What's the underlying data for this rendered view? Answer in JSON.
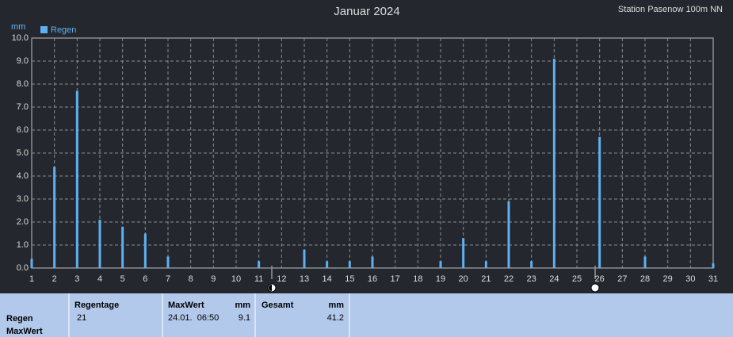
{
  "chart_data": {
    "type": "bar",
    "title": "Januar 2024",
    "annotation": "Station Pasenow  100m NN",
    "y_label": "mm",
    "x": [
      1,
      2,
      3,
      4,
      5,
      6,
      7,
      11,
      13,
      14,
      15,
      16,
      19,
      20,
      21,
      22,
      23,
      24,
      26,
      28,
      31
    ],
    "series": [
      {
        "name": "Regen",
        "color": "#5fb0f0",
        "values": [
          0.4,
          4.4,
          7.7,
          2.1,
          1.8,
          1.5,
          0.5,
          0.3,
          0.8,
          0.3,
          0.3,
          0.5,
          0.3,
          1.3,
          0.3,
          2.9,
          0.3,
          9.1,
          5.7,
          0.5,
          0.2
        ]
      }
    ],
    "xlim": [
      1,
      31
    ],
    "xticks": [
      1,
      2,
      3,
      4,
      5,
      6,
      7,
      8,
      9,
      10,
      11,
      12,
      13,
      14,
      15,
      16,
      17,
      18,
      19,
      20,
      21,
      22,
      23,
      24,
      25,
      26,
      27,
      28,
      29,
      30,
      31
    ],
    "ylim": [
      0,
      10
    ],
    "yticks": [
      {
        "value": 0,
        "label": "0.0"
      },
      {
        "value": 1,
        "label": "1.0"
      },
      {
        "value": 2,
        "label": "2.0"
      },
      {
        "value": 3,
        "label": "3.0"
      },
      {
        "value": 4,
        "label": "4.0"
      },
      {
        "value": 5,
        "label": "5.0"
      },
      {
        "value": 6,
        "label": "6.0"
      },
      {
        "value": 7,
        "label": "7.0"
      },
      {
        "value": 8,
        "label": "8.0"
      },
      {
        "value": 9,
        "label": "9.0"
      },
      {
        "value": 10,
        "label": "10.0"
      }
    ],
    "grid": true,
    "legend": "top-left"
  },
  "table": {
    "row_labels": [
      "Regen",
      "MaxWert"
    ],
    "regentage": {
      "header": "Regentage",
      "value": 21
    },
    "maxwert": {
      "header": "MaxWert",
      "unit": "mm",
      "time": "24.01.  06:50",
      "value": 9.1
    },
    "gesamt": {
      "header": "Gesamt",
      "unit": "mm",
      "value": 41.2
    }
  }
}
